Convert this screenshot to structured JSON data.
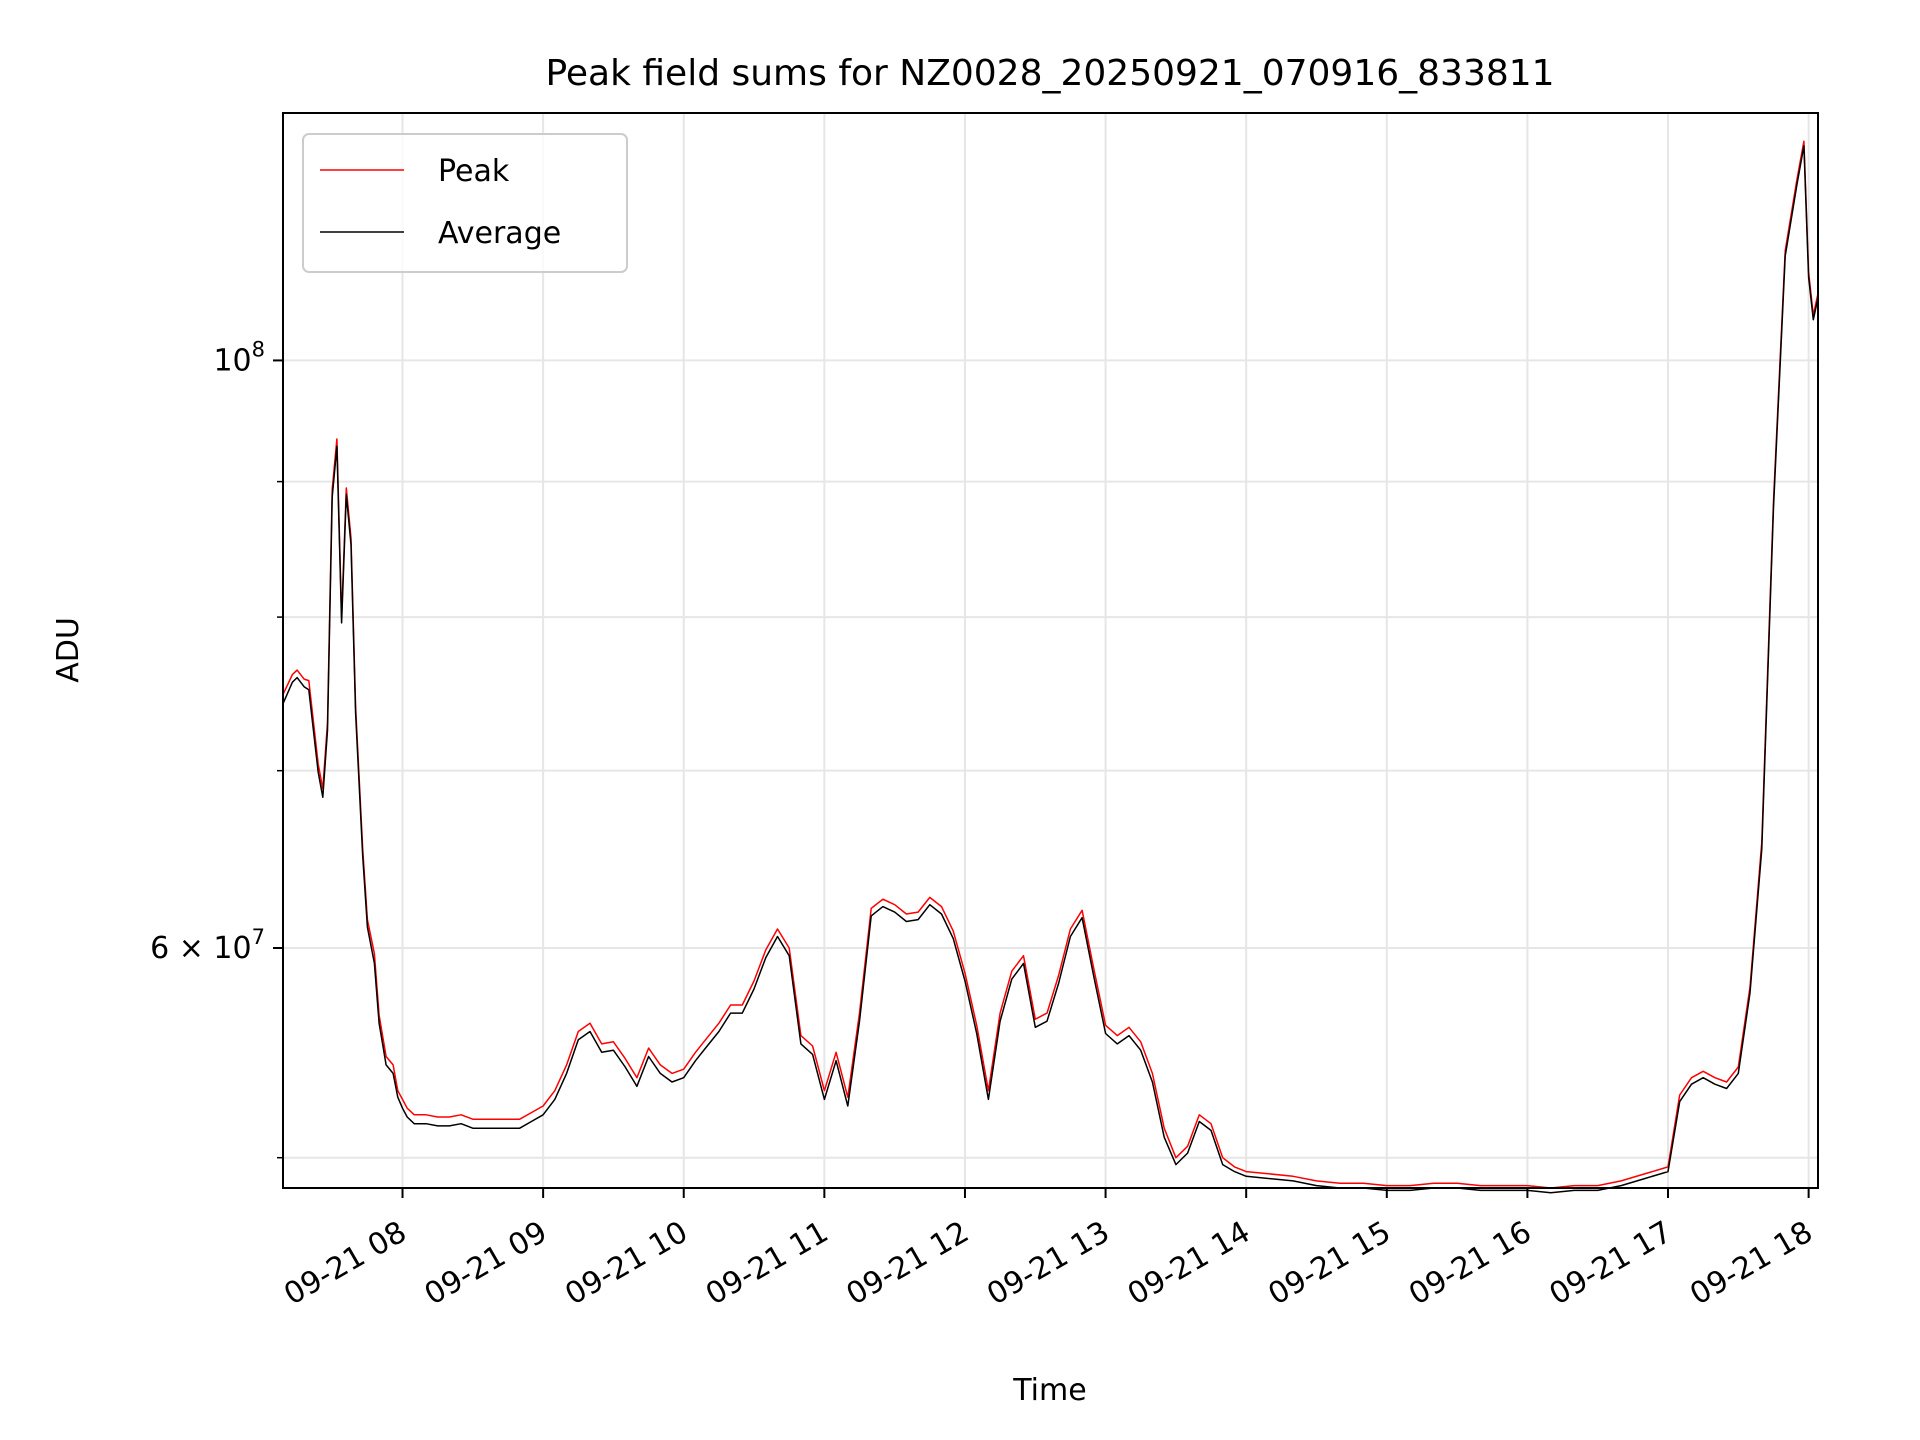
{
  "chart_data": {
    "type": "line",
    "title": "Peak field sums for NZ0028_20250921_070916_833811",
    "xlabel": "Time",
    "ylabel": "ADU",
    "xlim": [
      "2025-09-21 07:09",
      "2025-09-21 18:04"
    ],
    "ylim": [
      48700000,
      124000000
    ],
    "yscale": "log",
    "grid": true,
    "legend_position": "top-left",
    "x_ticks": [
      {
        "t": "2025-09-21 08:00",
        "label": "09-21 08"
      },
      {
        "t": "2025-09-21 09:00",
        "label": "09-21 09"
      },
      {
        "t": "2025-09-21 10:00",
        "label": "09-21 10"
      },
      {
        "t": "2025-09-21 11:00",
        "label": "09-21 11"
      },
      {
        "t": "2025-09-21 12:00",
        "label": "09-21 12"
      },
      {
        "t": "2025-09-21 13:00",
        "label": "09-21 13"
      },
      {
        "t": "2025-09-21 14:00",
        "label": "09-21 14"
      },
      {
        "t": "2025-09-21 15:00",
        "label": "09-21 15"
      },
      {
        "t": "2025-09-21 16:00",
        "label": "09-21 16"
      },
      {
        "t": "2025-09-21 17:00",
        "label": "09-21 17"
      },
      {
        "t": "2025-09-21 18:00",
        "label": "09-21 18"
      }
    ],
    "y_major_ticks": [
      {
        "value": 60000000,
        "base": "6",
        "mult": "×",
        "pow": "10",
        "exp": "7"
      },
      {
        "value": 100000000,
        "base": "",
        "mult": "",
        "pow": "10",
        "exp": "8"
      }
    ],
    "y_minor_ticks": [
      50000000,
      70000000,
      80000000,
      90000000
    ],
    "x": [
      "07:09",
      "07:13",
      "07:15",
      "07:18",
      "07:20",
      "07:24",
      "07:26",
      "07:28",
      "07:30",
      "07:32",
      "07:34",
      "07:36",
      "07:38",
      "07:40",
      "07:43",
      "07:45",
      "07:48",
      "07:50",
      "07:53",
      "07:56",
      "07:58",
      "08:00",
      "08:02",
      "08:05",
      "08:10",
      "08:15",
      "08:20",
      "08:25",
      "08:30",
      "08:35",
      "08:40",
      "08:45",
      "08:50",
      "08:55",
      "09:00",
      "09:05",
      "09:10",
      "09:15",
      "09:20",
      "09:25",
      "09:30",
      "09:35",
      "09:40",
      "09:45",
      "09:50",
      "09:55",
      "10:00",
      "10:05",
      "10:10",
      "10:15",
      "10:20",
      "10:25",
      "10:30",
      "10:35",
      "10:40",
      "10:45",
      "10:50",
      "10:55",
      "11:00",
      "11:05",
      "11:10",
      "11:15",
      "11:20",
      "11:25",
      "11:30",
      "11:35",
      "11:40",
      "11:45",
      "11:50",
      "11:55",
      "12:00",
      "12:05",
      "12:10",
      "12:15",
      "12:20",
      "12:25",
      "12:30",
      "12:35",
      "12:40",
      "12:45",
      "12:50",
      "12:55",
      "13:00",
      "13:05",
      "13:10",
      "13:15",
      "13:20",
      "13:25",
      "13:30",
      "13:35",
      "13:40",
      "13:45",
      "13:50",
      "13:55",
      "14:00",
      "14:10",
      "14:20",
      "14:30",
      "14:40",
      "14:50",
      "15:00",
      "15:10",
      "15:20",
      "15:30",
      "15:40",
      "15:50",
      "16:00",
      "16:10",
      "16:20",
      "16:30",
      "16:40",
      "16:50",
      "17:00",
      "17:05",
      "17:10",
      "17:15",
      "17:20",
      "17:25",
      "17:30",
      "17:35",
      "17:40",
      "17:45",
      "17:50",
      "17:55",
      "17:58",
      "18:00",
      "18:02",
      "18:04"
    ],
    "series": [
      {
        "name": "Peak",
        "color": "#ff0000",
        "values": [
          74800000,
          76100000,
          76400000,
          75800000,
          75700000,
          70400000,
          68900000,
          73000000,
          89400000,
          93400000,
          80000000,
          89500000,
          85700000,
          74000000,
          65400000,
          61500000,
          59700000,
          56600000,
          54600000,
          54200000,
          53000000,
          52600000,
          52200000,
          51900000,
          51900000,
          51800000,
          51800000,
          51900000,
          51700000,
          51700000,
          51700000,
          51700000,
          51700000,
          52000000,
          52300000,
          53000000,
          54200000,
          55800000,
          56200000,
          55200000,
          55300000,
          54500000,
          53600000,
          55000000,
          54200000,
          53800000,
          54000000,
          54800000,
          55500000,
          56200000,
          57100000,
          57100000,
          58300000,
          59900000,
          61000000,
          60000000,
          55600000,
          55100000,
          53000000,
          54800000,
          52700000,
          56700000,
          62100000,
          62600000,
          62300000,
          61800000,
          61900000,
          62700000,
          62200000,
          60900000,
          58700000,
          56100000,
          53000000,
          56700000,
          58800000,
          59600000,
          56400000,
          56700000,
          58600000,
          61000000,
          62000000,
          58900000,
          56100000,
          55600000,
          56000000,
          55300000,
          53800000,
          51300000,
          50000000,
          50500000,
          51900000,
          51500000,
          50000000,
          49600000,
          49400000,
          49300000,
          49200000,
          49000000,
          48900000,
          48900000,
          48800000,
          48800000,
          48900000,
          48900000,
          48800000,
          48800000,
          48800000,
          48700000,
          48800000,
          48800000,
          49000000,
          49300000,
          49600000,
          52800000,
          53600000,
          53900000,
          53600000,
          53400000,
          54100000,
          58000000,
          65800000,
          88500000,
          110000000,
          117000000,
          121000000,
          108000000,
          104000000,
          106000000
        ]
      },
      {
        "name": "Average",
        "color": "#000000",
        "values": [
          74200000,
          75600000,
          75900000,
          75300000,
          75100000,
          69900000,
          68400000,
          72500000,
          88800000,
          92800000,
          79600000,
          89000000,
          85200000,
          73600000,
          65000000,
          61100000,
          59200000,
          56200000,
          54200000,
          53800000,
          52700000,
          52200000,
          51800000,
          51500000,
          51500000,
          51400000,
          51400000,
          51500000,
          51300000,
          51300000,
          51300000,
          51300000,
          51300000,
          51600000,
          51900000,
          52600000,
          53800000,
          55400000,
          55800000,
          54800000,
          54900000,
          54100000,
          53200000,
          54600000,
          53800000,
          53400000,
          53600000,
          54400000,
          55100000,
          55800000,
          56700000,
          56700000,
          57900000,
          59500000,
          60600000,
          59600000,
          55200000,
          54700000,
          52600000,
          54400000,
          52300000,
          56300000,
          61700000,
          62200000,
          61900000,
          61400000,
          61500000,
          62300000,
          61800000,
          60500000,
          58300000,
          55700000,
          52600000,
          56300000,
          58400000,
          59200000,
          56000000,
          56300000,
          58200000,
          60600000,
          61600000,
          58500000,
          55700000,
          55200000,
          55600000,
          54900000,
          53400000,
          50900000,
          49700000,
          50200000,
          51600000,
          51200000,
          49700000,
          49400000,
          49200000,
          49100000,
          49000000,
          48800000,
          48700000,
          48700000,
          48600000,
          48600000,
          48700000,
          48700000,
          48600000,
          48600000,
          48600000,
          48500000,
          48600000,
          48600000,
          48800000,
          49100000,
          49400000,
          52500000,
          53300000,
          53600000,
          53300000,
          53100000,
          53800000,
          57700000,
          65400000,
          88000000,
          109500000,
          116500000,
          120500000,
          107500000,
          103600000,
          105600000
        ]
      }
    ]
  }
}
